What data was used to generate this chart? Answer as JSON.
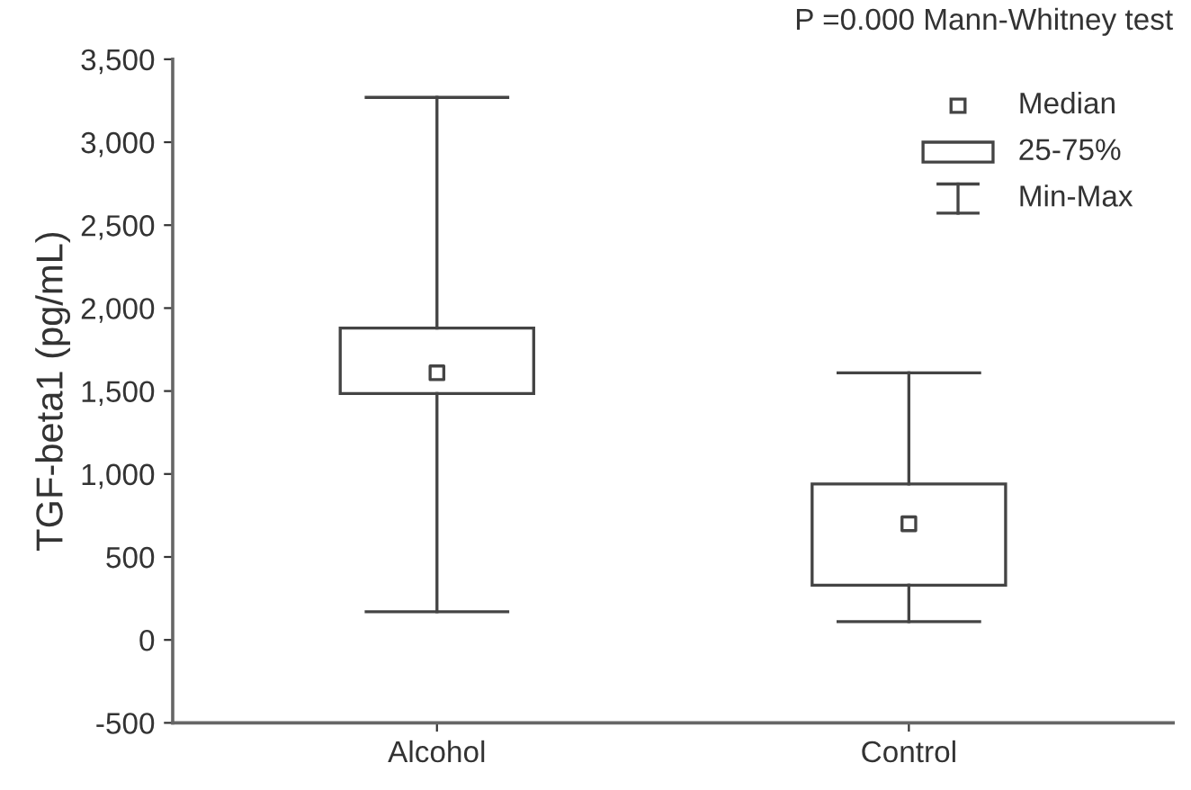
{
  "chart_data": {
    "type": "box",
    "ylabel": "TGF-beta1 (pg/mL)",
    "categories": [
      "Alcohol",
      "Control"
    ],
    "boxes": [
      {
        "low": 170,
        "q1": 1485,
        "median": 1610,
        "q3": 1880,
        "high": 3270
      },
      {
        "low": 110,
        "q1": 330,
        "median": 700,
        "q3": 940,
        "high": 1610
      }
    ],
    "ylim": [
      -500,
      3500
    ],
    "yticks": [
      {
        "value": -500,
        "label": "-500"
      },
      0,
      {
        "value": 500,
        "label": "500"
      },
      {
        "value": 1000,
        "label": "1,000"
      },
      {
        "value": 1500,
        "label": "1,500"
      },
      {
        "value": 2000,
        "label": "2,000"
      },
      {
        "value": 2500,
        "label": "2,500"
      },
      {
        "value": 3000,
        "label": "3,000"
      },
      {
        "value": 3500,
        "label": "3,500"
      }
    ],
    "annotations": [
      "P =0.000 Mann-Whitney test",
      "Median",
      "25-75%",
      "Min-Max"
    ],
    "grid": false
  }
}
